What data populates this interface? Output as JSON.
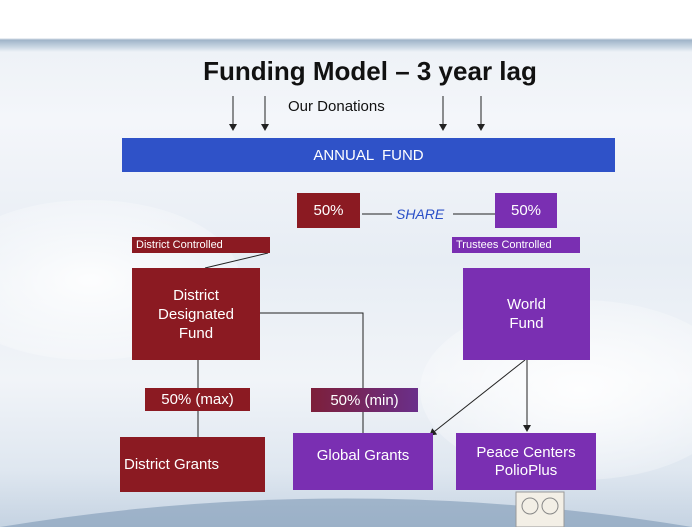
{
  "title": "Funding Model – 3 year lag",
  "donations_label": "Our Donations",
  "annual_fund": "ANNUAL  FUND",
  "share_label": "SHARE",
  "district_share": "50%",
  "trustees_share": "50%",
  "district_controlled": "District Controlled",
  "trustees_controlled": "Trustees Controlled",
  "district_fund": "District Designated Fund",
  "world_fund": "World Fund",
  "max_label": "50% (max)",
  "min_label": "50% (min)",
  "district_grants": "District Grants",
  "global_grants": "Global Grants",
  "peace_centers": "Peace Centers PolioPlus"
}
